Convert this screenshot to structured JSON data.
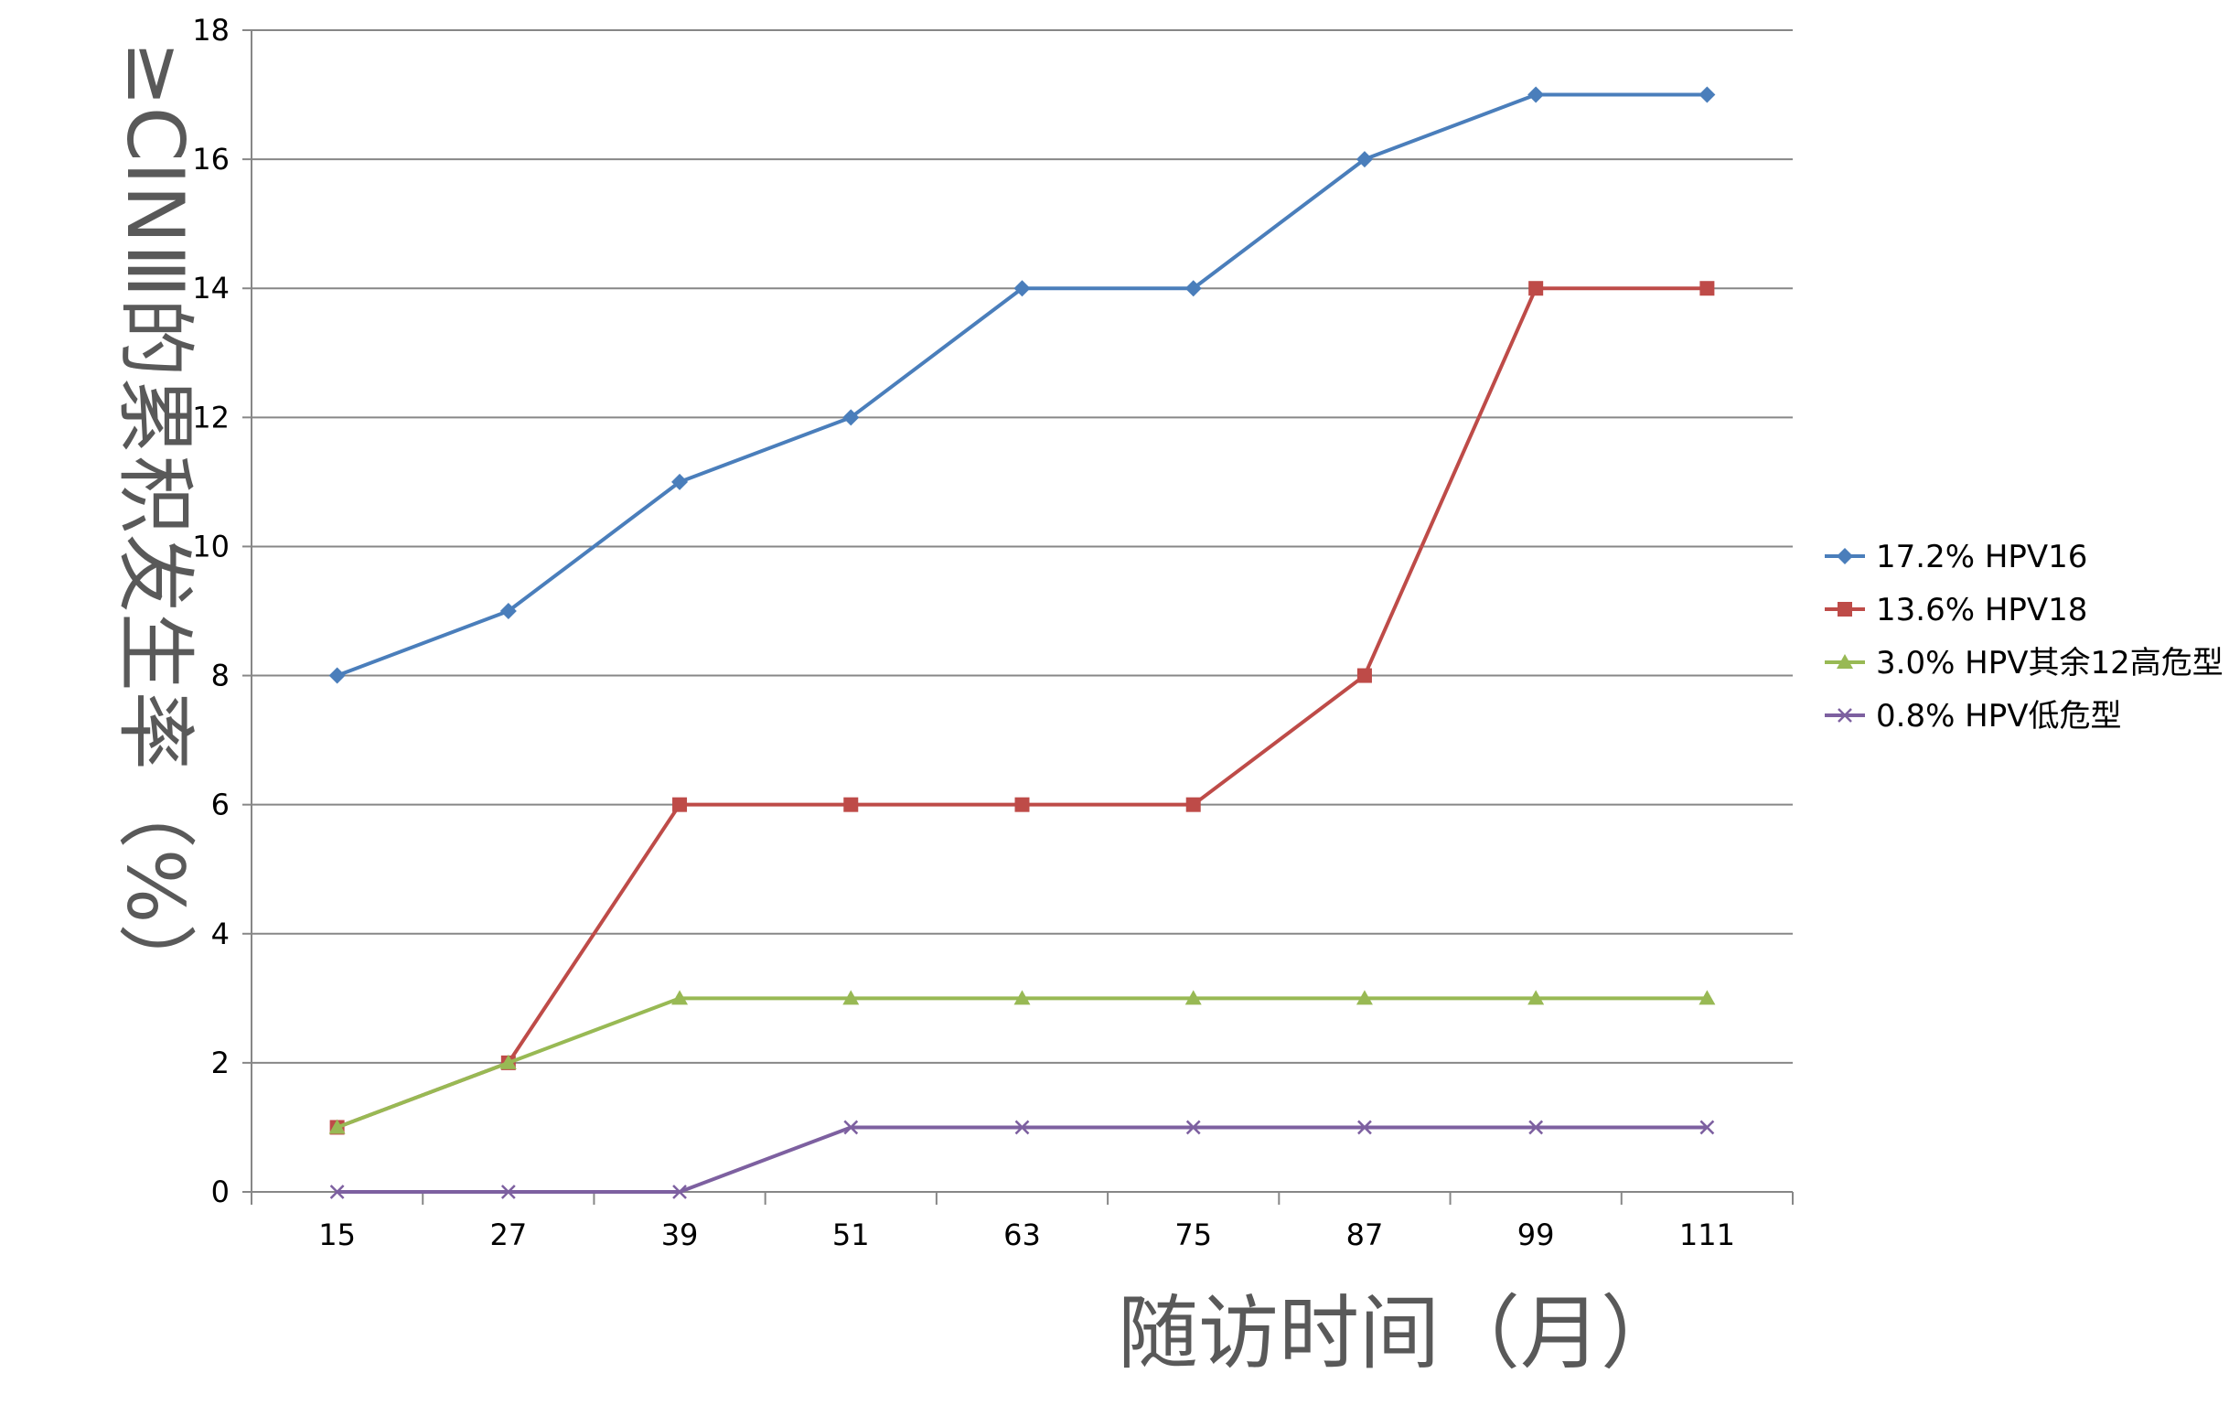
{
  "chart_data": {
    "type": "line",
    "title": "",
    "xlabel": "随访时间（月）",
    "ylabel": "≥CINⅢ的累积发生率（%）",
    "categories": [
      "15",
      "27",
      "39",
      "51",
      "63",
      "75",
      "87",
      "99",
      "111"
    ],
    "ylim": [
      0,
      18
    ],
    "yticks": [
      0,
      2,
      4,
      6,
      8,
      10,
      12,
      14,
      16,
      18
    ],
    "grid": "horizontal",
    "legend_position": "right",
    "series": [
      {
        "name": "17.2% HPV16",
        "color": "#4A7EBB",
        "marker": "diamond",
        "values": [
          8,
          9,
          11,
          12,
          14,
          14,
          16,
          17,
          17
        ]
      },
      {
        "name": "13.6% HPV18",
        "color": "#BE4B48",
        "marker": "square",
        "values": [
          1,
          2,
          6,
          6,
          6,
          6,
          8,
          14,
          14
        ]
      },
      {
        "name": "3.0% HPV其余12高危型",
        "color": "#98B954",
        "marker": "triangle",
        "values": [
          1,
          2,
          3,
          3,
          3,
          3,
          3,
          3,
          3
        ]
      },
      {
        "name": "0.8% HPV低危型",
        "color": "#7D60A0",
        "marker": "x",
        "values": [
          0,
          0,
          0,
          1,
          1,
          1,
          1,
          1,
          1
        ]
      }
    ]
  }
}
